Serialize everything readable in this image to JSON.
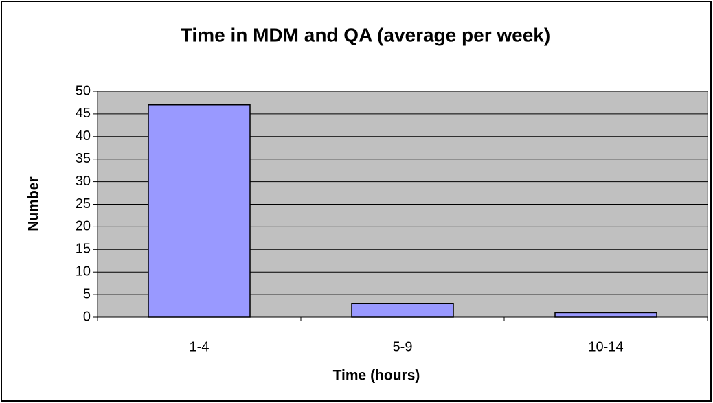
{
  "chart_data": {
    "type": "bar",
    "title": "Time in MDM and QA (average per week)",
    "x_label": "Time (hours)",
    "y_label": "Number",
    "categories": [
      "1-4",
      "5-9",
      "10-14"
    ],
    "values": [
      47,
      3,
      1
    ],
    "color": "#9999ff",
    "ylim": [
      0,
      50
    ],
    "yticks": [
      0,
      5,
      10,
      15,
      20,
      25,
      30,
      35,
      40,
      45,
      50
    ],
    "grid": true
  }
}
